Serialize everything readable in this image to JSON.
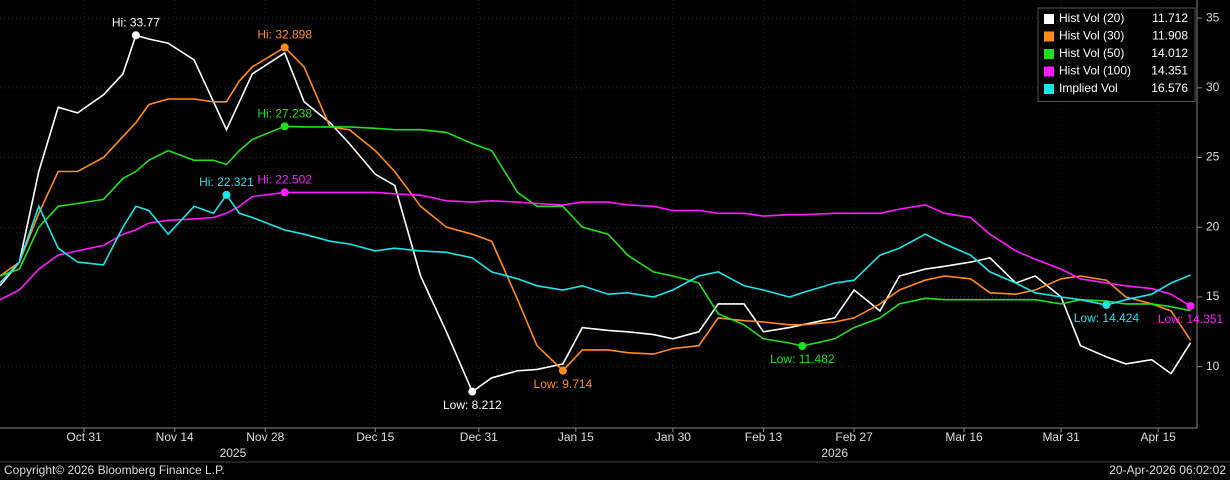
{
  "chart_data": {
    "type": "line",
    "x": [
      "2025-10-18",
      "2025-10-21",
      "2025-10-24",
      "2025-10-27",
      "2025-10-30",
      "2025-11-03",
      "2025-11-06",
      "2025-11-08",
      "2025-11-10",
      "2025-11-13",
      "2025-11-17",
      "2025-11-20",
      "2025-11-22",
      "2025-11-24",
      "2025-11-26",
      "2025-12-01",
      "2025-12-04",
      "2025-12-08",
      "2025-12-11",
      "2025-12-15",
      "2025-12-18",
      "2025-12-22",
      "2025-12-26",
      "2025-12-30",
      "2026-01-02",
      "2026-01-06",
      "2026-01-09",
      "2026-01-13",
      "2026-01-16",
      "2026-01-20",
      "2026-01-23",
      "2026-01-27",
      "2026-01-30",
      "2026-02-03",
      "2026-02-06",
      "2026-02-10",
      "2026-02-13",
      "2026-02-17",
      "2026-02-19",
      "2026-02-24",
      "2026-02-27",
      "2026-03-03",
      "2026-03-06",
      "2026-03-10",
      "2026-03-13",
      "2026-03-17",
      "2026-03-20",
      "2026-03-24",
      "2026-03-27",
      "2026-03-31",
      "2026-04-03",
      "2026-04-07",
      "2026-04-10",
      "2026-04-14",
      "2026-04-17",
      "2026-04-20"
    ],
    "series": [
      {
        "name": "Hist Vol (20)",
        "color": "#ffffff",
        "values": [
          15.8,
          17.5,
          24,
          28.6,
          28.2,
          29.5,
          31,
          33.77,
          33.5,
          33.2,
          32,
          29,
          27,
          29,
          31,
          32.5,
          29,
          27.5,
          26,
          23.8,
          23,
          16.5,
          12.5,
          8.212,
          9.2,
          9.7,
          9.8,
          10.2,
          12.8,
          12.6,
          12.5,
          12.3,
          12,
          12.5,
          14.5,
          14.5,
          12.5,
          12.8,
          13,
          13.5,
          15.5,
          14,
          16.5,
          17,
          17.2,
          17.5,
          17.8,
          16,
          16.5,
          15,
          11.5,
          10.7,
          10.2,
          10.5,
          9.5,
          11.712
        ],
        "annotations": [
          {
            "label": "Hi: 33.77",
            "x": "2025-11-08",
            "value": 33.77,
            "position": "above"
          },
          {
            "label": "Low: 8.212",
            "x": "2025-12-30",
            "value": 8.212,
            "position": "below"
          }
        ]
      },
      {
        "name": "Hist Vol (30)",
        "color": "#ff8c1a",
        "values": [
          16.5,
          17.5,
          21,
          24,
          24,
          25,
          26.5,
          27.5,
          28.8,
          29.2,
          29.2,
          29,
          29,
          30.5,
          31.5,
          32.898,
          31.5,
          27.2,
          27,
          25.5,
          24,
          21.5,
          20,
          19.5,
          19,
          14.8,
          11.5,
          9.714,
          11.2,
          11.2,
          11,
          10.9,
          11.3,
          11.5,
          13.5,
          13.3,
          13.2,
          13,
          13,
          13.2,
          13.5,
          14.5,
          15.5,
          16.2,
          16.5,
          16.3,
          15.3,
          15.2,
          15.5,
          16.3,
          16.5,
          16.2,
          15,
          14.5,
          14,
          11.908
        ],
        "annotations": [
          {
            "label": "Hi: 32.898",
            "x": "2025-12-01",
            "value": 32.898,
            "position": "above"
          },
          {
            "label": "Low: 9.714",
            "x": "2026-01-13",
            "value": 9.714,
            "position": "below"
          }
        ]
      },
      {
        "name": "Hist Vol (50)",
        "color": "#1fe01f",
        "values": [
          16.5,
          17,
          20,
          21.5,
          21.7,
          22,
          23.5,
          24,
          24.8,
          25.5,
          24.8,
          24.8,
          24.5,
          25.5,
          26.3,
          27.238,
          27.2,
          27.2,
          27.2,
          27.1,
          27,
          27,
          26.8,
          26,
          25.5,
          22.5,
          21.5,
          21.5,
          20,
          19.5,
          18,
          16.8,
          16.5,
          16,
          13.8,
          13,
          12,
          11.7,
          11.482,
          12,
          12.8,
          13.5,
          14.5,
          14.9,
          14.8,
          14.8,
          14.8,
          14.8,
          14.8,
          14.5,
          14.8,
          14.7,
          14.5,
          14.5,
          14.3,
          14.012
        ],
        "annotations": [
          {
            "label": "Hi: 27.238",
            "x": "2025-12-01",
            "value": 27.238,
            "position": "above"
          },
          {
            "label": "Low: 11.482",
            "x": "2026-02-19",
            "value": 11.482,
            "position": "below"
          }
        ]
      },
      {
        "name": "Hist Vol (100)",
        "color": "#ff1aff",
        "values": [
          14.8,
          15.5,
          17,
          18,
          18.3,
          18.7,
          19.5,
          19.8,
          20.3,
          20.5,
          20.6,
          20.7,
          21,
          21.5,
          22.2,
          22.502,
          22.5,
          22.5,
          22.5,
          22.5,
          22.4,
          22.3,
          21.9,
          21.8,
          21.9,
          21.8,
          21.7,
          21.6,
          21.8,
          21.8,
          21.6,
          21.5,
          21.2,
          21.2,
          21,
          21,
          20.8,
          20.9,
          20.9,
          21,
          21,
          21,
          21.3,
          21.6,
          21,
          20.7,
          19.5,
          18.3,
          17.7,
          17,
          16.3,
          16,
          15.8,
          15.6,
          15.2,
          14.351
        ],
        "annotations": [
          {
            "label": "Hi: 22.502",
            "x": "2025-12-01",
            "value": 22.502,
            "position": "above"
          },
          {
            "label": "Low: 14.351",
            "x": "2026-04-20",
            "value": 14.351,
            "position": "below"
          }
        ]
      },
      {
        "name": "Implied Vol",
        "color": "#1ae6e6",
        "values": [
          16,
          17.5,
          21.5,
          18.5,
          17.5,
          17.3,
          20,
          21.5,
          21.2,
          19.5,
          21.5,
          21,
          22.321,
          21,
          20.7,
          19.8,
          19.5,
          19,
          18.8,
          18.3,
          18.5,
          18.3,
          18.2,
          17.8,
          16.8,
          16.3,
          15.8,
          15.5,
          15.8,
          15.2,
          15.3,
          15,
          15.5,
          16.5,
          16.8,
          15.8,
          15.5,
          15,
          15.3,
          16,
          16.2,
          18,
          18.5,
          19.5,
          18.8,
          18,
          16.8,
          16,
          15.3,
          15,
          14.8,
          14.424,
          14.8,
          15.2,
          16,
          16.576
        ],
        "annotations": [
          {
            "label": "Hi: 22.321",
            "x": "2025-11-22",
            "value": 22.321,
            "position": "above"
          },
          {
            "label": "Low: 14.424",
            "x": "2026-04-07",
            "value": 14.424,
            "position": "below"
          }
        ]
      }
    ],
    "xlim": [
      "2025-10-18",
      "2026-04-21"
    ],
    "xticks": [
      {
        "value": "2025-10-31",
        "label": "Oct 31"
      },
      {
        "value": "2025-11-14",
        "label": "Nov 14"
      },
      {
        "value": "2025-11-28",
        "label": "Nov 28"
      },
      {
        "value": "2025-12-15",
        "label": "Dec 15"
      },
      {
        "value": "2025-12-31",
        "label": "Dec 31"
      },
      {
        "value": "2026-01-15",
        "label": "Jan 15"
      },
      {
        "value": "2026-01-30",
        "label": "Jan 30"
      },
      {
        "value": "2026-02-13",
        "label": "Feb 13"
      },
      {
        "value": "2026-02-27",
        "label": "Feb 27"
      },
      {
        "value": "2026-03-16",
        "label": "Mar 16"
      },
      {
        "value": "2026-03-31",
        "label": "Mar 31"
      },
      {
        "value": "2026-04-15",
        "label": "Apr 15"
      }
    ],
    "year_labels": [
      {
        "value": "2025-11-23",
        "label": "2025"
      },
      {
        "value": "2026-02-24",
        "label": "2026"
      }
    ],
    "ylim": [
      5.6,
      36.3
    ],
    "yticks": [
      10,
      15,
      20,
      25,
      30,
      35
    ],
    "grid": true,
    "legend": "top-right",
    "copyright": "Copyright© 2026 Bloomberg Finance L.P.",
    "timestamp": "20-Apr-2026 06:02:02"
  }
}
